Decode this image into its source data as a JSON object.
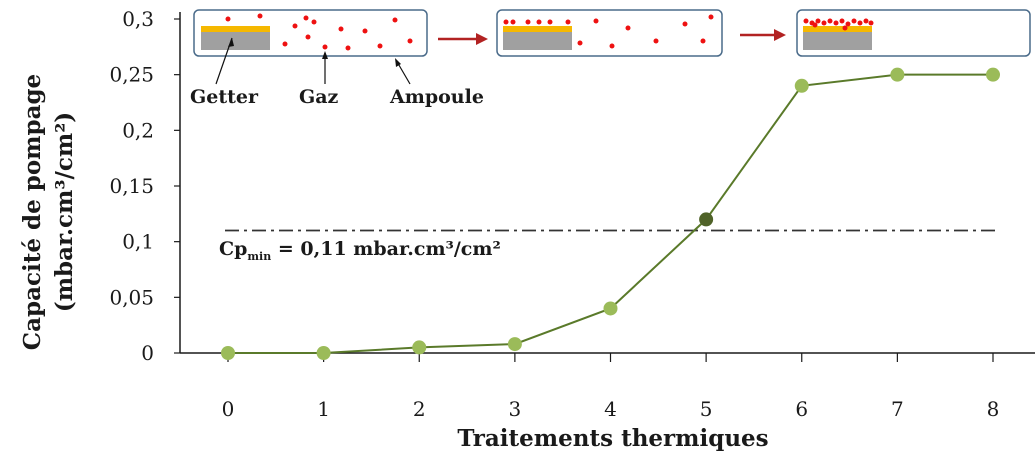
{
  "chart_data": {
    "type": "line",
    "xlabel": "Traitements thermiques",
    "ylabel_line1": "Capacité de pompage",
    "ylabel_line2": "(mbar.cm³/cm²)",
    "x": [
      0,
      1,
      2,
      3,
      4,
      5,
      6,
      7,
      8
    ],
    "y": [
      0,
      0,
      0.005,
      0.008,
      0.04,
      0.12,
      0.24,
      0.25,
      0.25
    ],
    "highlight_index": 5,
    "xlim": [
      0,
      8
    ],
    "ylim": [
      0,
      0.3
    ],
    "x_ticks": [
      "0",
      "1",
      "2",
      "3",
      "4",
      "5",
      "6",
      "7",
      "8"
    ],
    "y_ticks": [
      {
        "value": 0,
        "label": "0"
      },
      {
        "value": 0.05,
        "label": "0,05"
      },
      {
        "value": 0.1,
        "label": "0,1"
      },
      {
        "value": 0.15,
        "label": "0,15"
      },
      {
        "value": 0.2,
        "label": "0,2"
      },
      {
        "value": 0.25,
        "label": "0,25"
      },
      {
        "value": 0.3,
        "label": "0,3"
      }
    ],
    "threshold": {
      "value": 0.11,
      "label_main": "Cp",
      "label_sub": "min",
      "label_rest": " = 0,11 mbar.cm³/cm²"
    },
    "grid": false,
    "colors": {
      "line": "#5a7a2a",
      "marker": "#9bbb59",
      "highlight_marker": "#4f6228",
      "threshold": "#333333",
      "arrow": "#b22222",
      "getter": "#f5b800",
      "substrate": "#a0a0a0",
      "gas": "#ee1111",
      "ampoule_stroke": "#4a6b8a"
    }
  },
  "inset": {
    "labels": {
      "getter": "Getter",
      "gas": "Gaz",
      "ampoule": "Ampoule"
    }
  }
}
